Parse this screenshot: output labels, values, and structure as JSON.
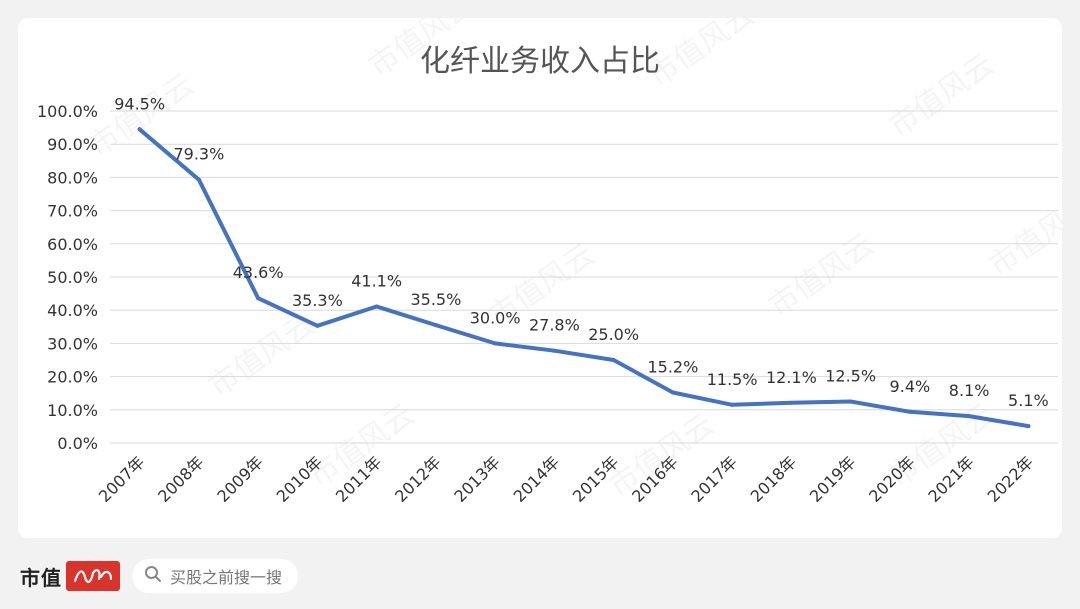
{
  "chart_data": {
    "type": "line",
    "title": "化纤业务收入占比",
    "categories": [
      "2007年",
      "2008年",
      "2009年",
      "2010年",
      "2011年",
      "2012年",
      "2013年",
      "2014年",
      "2015年",
      "2016年",
      "2017年",
      "2018年",
      "2019年",
      "2020年",
      "2021年",
      "2022年"
    ],
    "values": [
      94.5,
      79.3,
      43.6,
      35.3,
      41.1,
      35.5,
      30.0,
      27.8,
      25.0,
      15.2,
      11.5,
      12.1,
      12.5,
      9.4,
      8.1,
      5.1
    ],
    "data_labels": [
      "94.5%",
      "79.3%",
      "43.6%",
      "35.3%",
      "41.1%",
      "35.5%",
      "30.0%",
      "27.8%",
      "25.0%",
      "15.2%",
      "11.5%",
      "12.1%",
      "12.5%",
      "9.4%",
      "8.1%",
      "5.1%"
    ],
    "y_ticks": [
      "0.0%",
      "10.0%",
      "20.0%",
      "30.0%",
      "40.0%",
      "50.0%",
      "60.0%",
      "70.0%",
      "80.0%",
      "90.0%",
      "100.0%"
    ],
    "ylim": [
      0,
      100
    ],
    "xlabel": "",
    "ylabel": "",
    "grid": true,
    "legend": "none",
    "line_color": "#4472c4"
  },
  "watermark": "市值风云",
  "footer": {
    "brand": "市值",
    "logo_icon": "brand-script-logo-icon",
    "search_icon": "search-icon",
    "search_text": "买股之前搜一搜"
  }
}
